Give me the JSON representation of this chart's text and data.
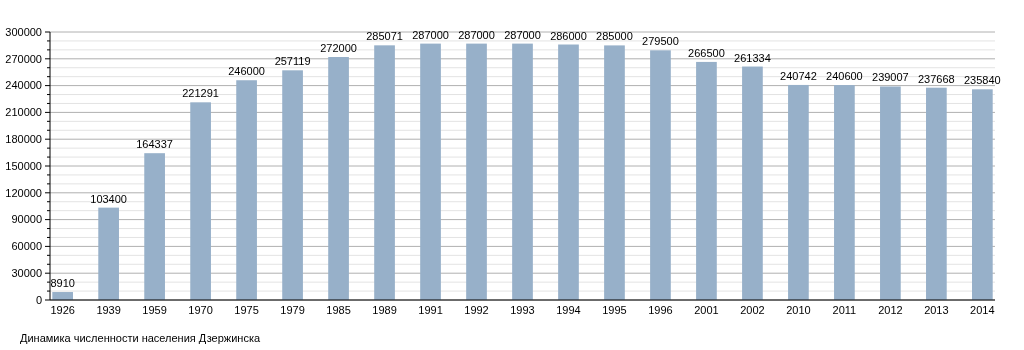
{
  "chart_data": {
    "type": "bar",
    "categories": [
      "1926",
      "1939",
      "1959",
      "1970",
      "1975",
      "1979",
      "1985",
      "1989",
      "1991",
      "1992",
      "1993",
      "1994",
      "1995",
      "1996",
      "2001",
      "2002",
      "2010",
      "2011",
      "2012",
      "2013",
      "2014"
    ],
    "values": [
      8910,
      103400,
      164337,
      221291,
      246000,
      257119,
      272000,
      285071,
      287000,
      287000,
      287000,
      286000,
      285000,
      279500,
      266500,
      261334,
      240742,
      240600,
      239007,
      237668,
      235840
    ],
    "color": "#97b0c9",
    "ylim": [
      0,
      300000
    ],
    "yticks": [
      0,
      30000,
      60000,
      90000,
      120000,
      150000,
      180000,
      210000,
      240000,
      270000,
      300000
    ],
    "grid": true,
    "data_labels": true,
    "annotations": [
      "Динамика численности населения Дзержинска"
    ]
  }
}
